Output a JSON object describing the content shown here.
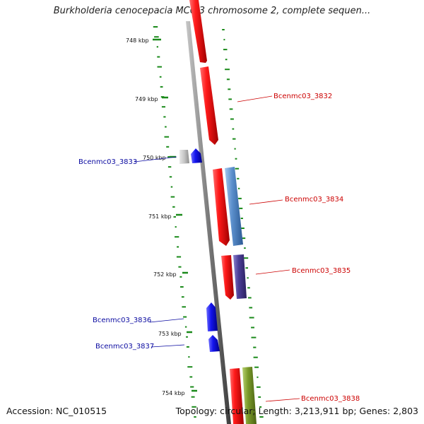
{
  "map": {
    "title": "Burkholderia cenocepacia MC0-3 chromosome 2, complete sequen...",
    "accession_text": "Accession: NC_010515",
    "summary_text": "Topology: circular; Length: 3,213,911 bp; Genes: 2,803"
  },
  "scale": {
    "ticks": [
      {
        "label": "748 kbp"
      },
      {
        "label": "749 kbp"
      },
      {
        "label": "750 kbp"
      },
      {
        "label": "751 kbp"
      },
      {
        "label": "752 kbp"
      },
      {
        "label": "753 kbp"
      },
      {
        "label": "754 kbp"
      }
    ]
  },
  "genes": [
    {
      "label": "Bcenmc03_3832",
      "strand": "forward"
    },
    {
      "label": "Bcenmc03_3833",
      "strand": "reverse"
    },
    {
      "label": "Bcenmc03_3834",
      "strand": "forward"
    },
    {
      "label": "Bcenmc03_3835",
      "strand": "forward"
    },
    {
      "label": "Bcenmc03_3836",
      "strand": "reverse"
    },
    {
      "label": "Bcenmc03_3837",
      "strand": "reverse"
    },
    {
      "label": "Bcenmc03_3838",
      "strand": "forward"
    }
  ],
  "colors": {
    "cds_forward": "#e8151c",
    "cds_reverse": "#1414e6",
    "backbone": "#777777",
    "gc_ticks": "#1a8a1a",
    "forward_label": "#cc0000",
    "reverse_label": "#0a0aa0",
    "feature_blue": "#4f86c6",
    "feature_purple": "#4b3f98",
    "feature_green": "#7a9a2a",
    "feature_gray": "#b8b8b8"
  }
}
